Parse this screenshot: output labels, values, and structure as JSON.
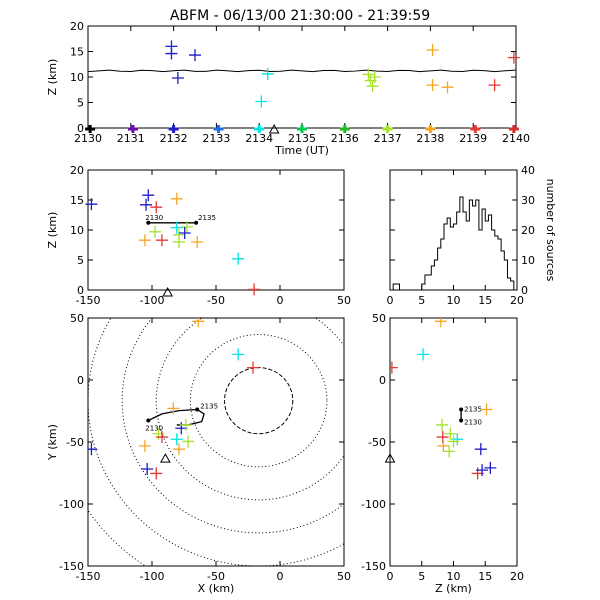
{
  "title": "ABFM - 06/13/00 21:30:00 - 21:39:59",
  "colors": {
    "c2130": "#000000",
    "c2131": "#6a0dad",
    "c2132": "#1c1cc8",
    "c2133": "#1f6fe0",
    "c2134": "#00e5e5",
    "c2135": "#00c853",
    "c2136": "#1fb81f",
    "c2137": "#a6e22e",
    "c2138": "#f5a623",
    "c2139": "#e53935",
    "c2140": "#d32f2f",
    "flash_track": "#000000",
    "range_rings": "#000000"
  },
  "chart_data": [
    {
      "id": "time_height",
      "type": "scatter",
      "xlabel": "Time (UT)",
      "ylabel": "Z (km)",
      "xlim": [
        2130,
        2140
      ],
      "ylim": [
        0,
        20
      ],
      "xticks": [
        "2130",
        "2131",
        "2132",
        "2133",
        "2134",
        "2135",
        "2136",
        "2137",
        "2138",
        "2139",
        "2140"
      ],
      "yticks": [
        "0",
        "5",
        "10",
        "15",
        "20"
      ],
      "points": [
        {
          "x": 2131.95,
          "y": 16.0,
          "c": "c2132"
        },
        {
          "x": 2131.95,
          "y": 14.6,
          "c": "c2132"
        },
        {
          "x": 2132.1,
          "y": 9.8,
          "c": "c2132"
        },
        {
          "x": 2132.5,
          "y": 14.3,
          "c": "c2132"
        },
        {
          "x": 2134.05,
          "y": 5.2,
          "c": "c2134"
        },
        {
          "x": 2134.2,
          "y": 10.6,
          "c": "c2134"
        },
        {
          "x": 2136.55,
          "y": 10.5,
          "c": "c2137"
        },
        {
          "x": 2136.6,
          "y": 9.3,
          "c": "c2137"
        },
        {
          "x": 2136.65,
          "y": 8.2,
          "c": "c2137"
        },
        {
          "x": 2136.7,
          "y": 10.0,
          "c": "c2137"
        },
        {
          "x": 2138.05,
          "y": 15.3,
          "c": "c2138"
        },
        {
          "x": 2138.05,
          "y": 8.4,
          "c": "c2138"
        },
        {
          "x": 2138.4,
          "y": 8.0,
          "c": "c2138"
        },
        {
          "x": 2139.5,
          "y": 8.4,
          "c": "c2139"
        },
        {
          "x": 2139.95,
          "y": 13.8,
          "c": "c2139"
        }
      ],
      "ground_points": [
        {
          "x": 2130.05,
          "c": "c2130"
        },
        {
          "x": 2131.05,
          "c": "c2131"
        },
        {
          "x": 2132.0,
          "c": "c2132"
        },
        {
          "x": 2133.05,
          "c": "c2133"
        },
        {
          "x": 2134.0,
          "c": "c2134"
        },
        {
          "x": 2135.0,
          "c": "c2135"
        },
        {
          "x": 2136.0,
          "c": "c2136"
        },
        {
          "x": 2137.0,
          "c": "c2137"
        },
        {
          "x": 2138.0,
          "c": "c2138"
        },
        {
          "x": 2139.05,
          "c": "c2139"
        },
        {
          "x": 2139.95,
          "c": "c2140"
        }
      ],
      "reference_line": {
        "z": 11.2,
        "from": 2130,
        "to": 2140
      },
      "station_marker": {
        "x": 2134.35,
        "y": 0
      }
    },
    {
      "id": "x_height",
      "type": "scatter",
      "xlabel": "",
      "ylabel": "Z (km)",
      "xlim": [
        -150,
        75
      ],
      "ylim": [
        0,
        20
      ],
      "xticks": [
        "-150",
        "-100",
        "-50",
        "0",
        "50"
      ],
      "yticks": [
        "0",
        "5",
        "10",
        "15",
        "20"
      ],
      "points": [
        {
          "x": -147,
          "y": 14.3,
          "c": "c2132"
        },
        {
          "x": -97,
          "y": 15.8,
          "c": "c2132"
        },
        {
          "x": -99,
          "y": 14.2,
          "c": "c2132"
        },
        {
          "x": -90,
          "y": 13.8,
          "c": "c2139"
        },
        {
          "x": -72,
          "y": 15.2,
          "c": "c2138"
        },
        {
          "x": -100,
          "y": 8.3,
          "c": "c2138"
        },
        {
          "x": -91,
          "y": 9.7,
          "c": "c2137"
        },
        {
          "x": -85,
          "y": 8.3,
          "c": "c2139"
        },
        {
          "x": -70,
          "y": 8.0,
          "c": "c2137"
        },
        {
          "x": -70,
          "y": 9.2,
          "c": "c2137"
        },
        {
          "x": -63,
          "y": 10.5,
          "c": "c2137"
        },
        {
          "x": -72,
          "y": 10.4,
          "c": "c2134"
        },
        {
          "x": -65,
          "y": 9.5,
          "c": "c2132"
        },
        {
          "x": -54,
          "y": 8.0,
          "c": "c2138"
        },
        {
          "x": -18,
          "y": 5.2,
          "c": "c2134"
        },
        {
          "x": -4,
          "y": 0.1,
          "c": "c2139"
        }
      ],
      "track": {
        "x1": -97,
        "x2": -55,
        "z": 11.2,
        "label_start": "2130",
        "label_end": "2135"
      },
      "station_marker": {
        "x": -80,
        "y": 0
      }
    },
    {
      "id": "histogram",
      "type": "histogram",
      "xlabel": "",
      "ylabel": "number of sources",
      "xlim": [
        0,
        20
      ],
      "ylim": [
        0,
        40
      ],
      "xticks": [
        "0",
        "5",
        "10",
        "15",
        "20"
      ],
      "yticks": [
        "0",
        "10",
        "20",
        "30",
        "40"
      ],
      "bin_width": 0.5,
      "counts": [
        0,
        2,
        2,
        0,
        0,
        0,
        0,
        0,
        0,
        0,
        2,
        5,
        5,
        8,
        10,
        14,
        17,
        22,
        24,
        21,
        22,
        26,
        31,
        26,
        23,
        30,
        28,
        30,
        20,
        27,
        23,
        25,
        20,
        18,
        17,
        13,
        10,
        4,
        3,
        0
      ]
    },
    {
      "id": "plan_view",
      "type": "scatter",
      "xlabel": "X (km)",
      "ylabel": "Y (km)",
      "xlim": [
        -150,
        75
      ],
      "ylim": [
        -150,
        75
      ],
      "xticks": [
        "-150",
        "-100",
        "-50",
        "0",
        "50"
      ],
      "yticks": [
        "-150",
        "-100",
        "-50",
        "0",
        "50"
      ],
      "range_rings_km": [
        30,
        60,
        90,
        120,
        150,
        180
      ],
      "points": [
        {
          "x": -53,
          "y": 72,
          "c": "c2138"
        },
        {
          "x": -18,
          "y": 42,
          "c": "c2134"
        },
        {
          "x": -5,
          "y": 30,
          "c": "c2139"
        },
        {
          "x": -147,
          "y": -44,
          "c": "c2132"
        },
        {
          "x": -98,
          "y": -62,
          "c": "c2132"
        },
        {
          "x": -90,
          "y": -66,
          "c": "c2139"
        },
        {
          "x": -100,
          "y": -41,
          "c": "c2138"
        },
        {
          "x": -88,
          "y": -30,
          "c": "c2137"
        },
        {
          "x": -85,
          "y": -33,
          "c": "c2139"
        },
        {
          "x": -72,
          "y": -35,
          "c": "c2134"
        },
        {
          "x": -62,
          "y": -37,
          "c": "c2137"
        },
        {
          "x": -68,
          "y": -25,
          "c": "c2132"
        },
        {
          "x": -64,
          "y": -22,
          "c": "c2137"
        },
        {
          "x": -70,
          "y": -44,
          "c": "c2138"
        },
        {
          "x": -75,
          "y": -7,
          "c": "c2138"
        }
      ],
      "track": [
        [
          -97,
          -18
        ],
        [
          -85,
          -12
        ],
        [
          -70,
          -9
        ],
        [
          -54,
          -8
        ],
        [
          -48,
          -12
        ],
        [
          -50,
          -19
        ],
        [
          -62,
          -22
        ],
        [
          -72,
          -22
        ]
      ],
      "track_labels": {
        "start": "2130",
        "end": "2135"
      },
      "station_marker": {
        "x": -82,
        "y": -53
      }
    },
    {
      "id": "z_plan",
      "type": "scatter",
      "xlabel": "Z (km)",
      "ylabel": "",
      "xlim": [
        0,
        20
      ],
      "ylim": [
        -150,
        75
      ],
      "xticks": [
        "0",
        "5",
        "10",
        "15",
        "20"
      ],
      "yticks": [
        "-150",
        "-100",
        "-50",
        "0",
        "50"
      ],
      "points": [
        {
          "x": 8.0,
          "y": 72,
          "c": "c2138"
        },
        {
          "x": 5.2,
          "y": 42,
          "c": "c2134"
        },
        {
          "x": 0.3,
          "y": 30,
          "c": "c2139"
        },
        {
          "x": 15.2,
          "y": -8,
          "c": "c2138"
        },
        {
          "x": 8.2,
          "y": -22,
          "c": "c2137"
        },
        {
          "x": 9.5,
          "y": -30,
          "c": "c2137"
        },
        {
          "x": 8.3,
          "y": -33,
          "c": "c2139"
        },
        {
          "x": 10.6,
          "y": -35,
          "c": "c2134"
        },
        {
          "x": 10.0,
          "y": -37,
          "c": "c2137"
        },
        {
          "x": 8.4,
          "y": -41,
          "c": "c2138"
        },
        {
          "x": 9.3,
          "y": -46,
          "c": "c2137"
        },
        {
          "x": 14.3,
          "y": -44,
          "c": "c2132"
        },
        {
          "x": 13.8,
          "y": -66,
          "c": "c2139"
        },
        {
          "x": 14.5,
          "y": -63,
          "c": "c2132"
        },
        {
          "x": 15.8,
          "y": -61,
          "c": "c2132"
        }
      ],
      "track": {
        "z": 11.2,
        "y1": -8,
        "y2": -18,
        "label_start": "2130",
        "label_end": "2135"
      },
      "station_marker": {
        "x": 0,
        "y": -53
      }
    }
  ]
}
